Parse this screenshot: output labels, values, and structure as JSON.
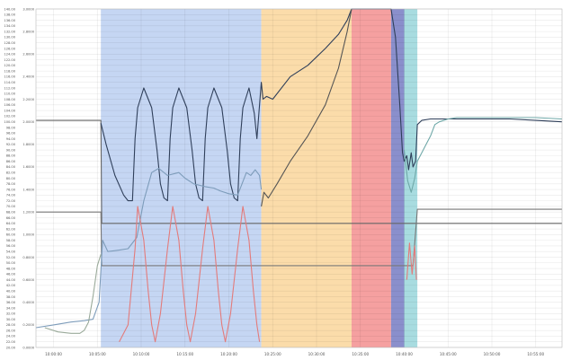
{
  "chart_data": {
    "type": "line",
    "title": "",
    "xlabel": "",
    "ylabel": "",
    "x_tick_labels": [
      "10:00:00",
      "10:05:00",
      "10:10:00",
      "10:15:00",
      "10:20:00",
      "10:25:00",
      "10:30:00",
      "10:35:00",
      "10:40:00",
      "10:45:00",
      "10:50:00",
      "10:55:00"
    ],
    "left_axis": {
      "ylim": [
        20,
        140
      ],
      "ticks": [
        20,
        22,
        24,
        26,
        28,
        30,
        32,
        34,
        36,
        38,
        40,
        42,
        44,
        46,
        48,
        50,
        52,
        54,
        56,
        58,
        60,
        62,
        64,
        66,
        68,
        70,
        72,
        74,
        76,
        78,
        80,
        82,
        84,
        86,
        88,
        90,
        92,
        94,
        96,
        98,
        100,
        102,
        104,
        106,
        108,
        110,
        112,
        114,
        116,
        118,
        120,
        122,
        124,
        126,
        128,
        130,
        132,
        134,
        136,
        138,
        140
      ]
    },
    "right_axis": {
      "ylim": [
        0.0,
        3.0
      ],
      "ticks": [
        0.0,
        0.2,
        0.4,
        0.6,
        0.8,
        1.0,
        1.2,
        1.4,
        1.6,
        1.8,
        2.0,
        2.2,
        2.4,
        2.6,
        2.8,
        3.0
      ]
    },
    "grid": true,
    "x_range": [
      -2.0,
      58.0
    ],
    "shaded_regions": [
      {
        "start": 5.4,
        "end": 23.7,
        "color": "#c5d6f3"
      },
      {
        "start": 23.7,
        "end": 34.0,
        "color": "#fbdcaa"
      },
      {
        "start": 34.0,
        "end": 38.5,
        "color": "#f5a0a0"
      },
      {
        "start": 38.5,
        "end": 40.0,
        "color": "#8a8fcc"
      },
      {
        "start": 40.0,
        "end": 41.5,
        "color": "#a8dce0"
      }
    ],
    "series": [
      {
        "color": "#666666",
        "axis": "left",
        "x": [
          -2.0,
          5.4,
          5.5,
          58.0
        ],
        "y": [
          100.5,
          100.5,
          64.0,
          64.0
        ]
      },
      {
        "color": "#777777",
        "axis": "left",
        "x": [
          -2.0,
          5.4,
          5.5,
          40.0,
          41.0,
          41.5,
          58.0
        ],
        "y": [
          68.0,
          68.0,
          49.0,
          49.0,
          49.0,
          69.0,
          69.0
        ]
      },
      {
        "color": "#2f3f5a",
        "axis": "left",
        "x": [
          5.4,
          6.0,
          7.0,
          8.0,
          8.5,
          9.0,
          9.3,
          9.6,
          10.3,
          11.2,
          11.8,
          12.2,
          12.6,
          13.0,
          13.3,
          13.6,
          14.3,
          15.2,
          15.8,
          16.2,
          16.6,
          17.0,
          17.3,
          17.6,
          18.3,
          19.2,
          19.8,
          20.2,
          20.6,
          21.0,
          21.3,
          21.6,
          22.3,
          22.9,
          23.2,
          23.6,
          23.7,
          23.9,
          24.3,
          25.0,
          27.0,
          29.0,
          31.0,
          32.5,
          33.5,
          34.0,
          38.5,
          39.0,
          39.5,
          39.8,
          40.0,
          40.3,
          40.5,
          40.8,
          41.0,
          41.3,
          41.5,
          42.0,
          43.0,
          45.0,
          48.0,
          52.0,
          55.0,
          58.0
        ],
        "y": [
          99.5,
          92.0,
          81.0,
          74.0,
          72.0,
          72.0,
          94.0,
          105.0,
          112.0,
          105.0,
          90.0,
          78.0,
          73.0,
          72.0,
          94.0,
          105.0,
          112.0,
          105.0,
          90.0,
          78.0,
          73.0,
          72.0,
          94.0,
          105.0,
          112.0,
          105.0,
          90.0,
          78.0,
          73.0,
          72.0,
          94.0,
          105.0,
          112.0,
          103.0,
          94.0,
          110.0,
          114.0,
          108.0,
          109.0,
          108.0,
          116.0,
          120.0,
          126.0,
          131.0,
          136.0,
          140.0,
          140.0,
          130.0,
          106.0,
          89.0,
          86.0,
          88.0,
          83.0,
          89.0,
          84.0,
          86.0,
          99.0,
          100.5,
          101.0,
          101.0,
          101.0,
          101.0,
          100.5,
          100.0
        ]
      },
      {
        "color": "#7d9cba",
        "axis": "left",
        "x": [
          -2.0,
          0.0,
          2.0,
          3.5,
          4.5,
          5.2,
          5.6,
          6.2,
          7.5,
          8.5,
          9.5,
          10.3,
          11.2,
          12.0,
          13.0,
          14.3,
          15.0,
          16.0,
          17.3,
          18.3,
          19.0,
          20.0,
          21.0,
          22.0,
          22.5,
          23.0,
          23.5,
          23.7
        ],
        "y": [
          27.0,
          28.0,
          29.0,
          29.5,
          30.0,
          36.0,
          58.0,
          54.0,
          54.5,
          55.0,
          59.0,
          72.0,
          82.0,
          83.5,
          81.0,
          82.0,
          80.0,
          78.0,
          77.0,
          76.5,
          75.5,
          74.5,
          74.0,
          82.0,
          81.0,
          83.0,
          81.0,
          76.0
        ]
      },
      {
        "color": "#555555",
        "axis": "left",
        "x": [
          23.7,
          24.0,
          24.5,
          25.5,
          27.0,
          29.0,
          31.0,
          32.5,
          33.5,
          34.0
        ],
        "y": [
          70.0,
          75.0,
          73.0,
          78.0,
          86.0,
          95.0,
          106.0,
          119.0,
          132.0,
          140.0
        ]
      },
      {
        "color": "#6fa8a8",
        "axis": "left",
        "x": [
          40.0,
          40.4,
          40.8,
          41.2,
          41.5,
          42.0,
          42.5,
          43.0,
          43.5,
          44.0,
          45.0,
          46.0,
          48.0,
          52.0,
          55.0,
          58.0
        ],
        "y": [
          90.0,
          79.0,
          75.0,
          80.0,
          86.0,
          89.0,
          92.0,
          95.0,
          99.0,
          100.0,
          101.0,
          101.5,
          101.5,
          101.5,
          101.5,
          101.0
        ]
      },
      {
        "color": "#9aaa9a",
        "axis": "left",
        "x": [
          -1.0,
          0.5,
          2.0,
          3.0,
          3.5,
          4.0,
          4.5,
          5.0,
          5.4
        ],
        "y": [
          27.0,
          25.5,
          25.0,
          25.0,
          26.0,
          29.0,
          38.0,
          49.0,
          53.0
        ]
      },
      {
        "color": "#e37b7b",
        "axis": "left",
        "x": [
          7.5,
          8.5,
          9.3,
          9.6,
          10.3,
          10.8,
          11.2,
          11.6,
          12.2,
          13.0,
          13.6,
          14.3,
          14.8,
          15.2,
          15.6,
          16.2,
          17.0,
          17.6,
          18.3,
          18.8,
          19.2,
          19.6,
          20.2,
          21.0,
          21.6,
          22.3,
          22.8,
          23.2,
          23.5
        ],
        "y": [
          22.0,
          28.0,
          55.0,
          70.0,
          58.0,
          40.0,
          28.0,
          22.0,
          32.0,
          55.0,
          70.0,
          58.0,
          40.0,
          28.0,
          22.0,
          32.0,
          55.0,
          70.0,
          58.0,
          40.0,
          28.0,
          22.0,
          32.0,
          55.0,
          70.0,
          58.0,
          40.0,
          28.0,
          22.0
        ]
      },
      {
        "color": "#e37b7b",
        "axis": "left",
        "x": [
          40.3,
          40.6,
          40.9,
          41.2,
          41.4
        ],
        "y": [
          44.0,
          57.0,
          46.0,
          56.0,
          44.0
        ]
      }
    ]
  }
}
